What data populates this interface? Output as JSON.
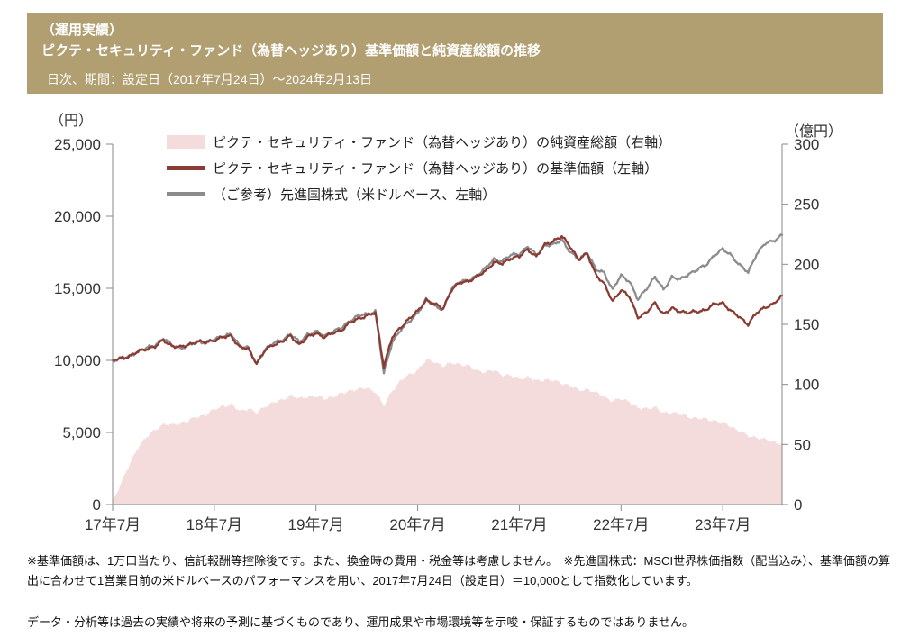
{
  "header": {
    "line1": "（運用実績）",
    "line2": "ピクテ・セキュリティ・ファンド（為替ヘッジあり）基準価額と純資産総額の推移",
    "line3": "日次、期間：設定日（2017年7月24日）～2024年2月13日"
  },
  "footnotes": {
    "note1": "※基準価額は、1万口当たり、信託報酬等控除後です。また、換金時の費用・税金等は考慮しません。　※先進国株式：MSCI世界株価指数（配当込み）、基準価額の算出に合わせて1営業日前の米ドルベースのパフォーマンスを用い、2017年7月24日（設定日）＝10,000として指数化しています。",
    "note2": "データ・分析等は過去の実績や将来の予測に基づくものであり、運用成果や市場環境等を示唆・保証するものではありません。"
  },
  "colors": {
    "header_bg": "#b19f72",
    "header_text": "#ffffff",
    "area_pink": "#f5dcdc",
    "nav_red": "#8a3b33",
    "index_gray": "#8c8c8c",
    "axis_text": "#333333",
    "axis_line": "#8a8a8a"
  },
  "chart_data": {
    "type": "line+area",
    "title": "ピクテ・セキュリティ・ファンド（為替ヘッジあり）基準価額と純資産総額の推移",
    "subtitle": "日次、期間：設定日（2017年7月24日）～2024年2月13日",
    "grid": false,
    "legend_position": "top-left-inside",
    "x_unit": "month",
    "x": [
      "2017-07",
      "2017-08",
      "2017-09",
      "2017-10",
      "2017-11",
      "2017-12",
      "2018-01",
      "2018-02",
      "2018-03",
      "2018-04",
      "2018-05",
      "2018-06",
      "2018-07",
      "2018-08",
      "2018-09",
      "2018-10",
      "2018-11",
      "2018-12",
      "2019-01",
      "2019-02",
      "2019-03",
      "2019-04",
      "2019-05",
      "2019-06",
      "2019-07",
      "2019-08",
      "2019-09",
      "2019-10",
      "2019-11",
      "2019-12",
      "2020-01",
      "2020-02",
      "2020-03",
      "2020-04",
      "2020-05",
      "2020-06",
      "2020-07",
      "2020-08",
      "2020-09",
      "2020-10",
      "2020-11",
      "2020-12",
      "2021-01",
      "2021-02",
      "2021-03",
      "2021-04",
      "2021-05",
      "2021-06",
      "2021-07",
      "2021-08",
      "2021-09",
      "2021-10",
      "2021-11",
      "2021-12",
      "2022-01",
      "2022-02",
      "2022-03",
      "2022-04",
      "2022-05",
      "2022-06",
      "2022-07",
      "2022-08",
      "2022-09",
      "2022-10",
      "2022-11",
      "2022-12",
      "2023-01",
      "2023-02",
      "2023-03",
      "2023-04",
      "2023-05",
      "2023-06",
      "2023-07",
      "2023-08",
      "2023-09",
      "2023-10",
      "2023-11",
      "2023-12",
      "2024-01",
      "2024-02"
    ],
    "x_tick_labels": [
      "17年7月",
      "18年7月",
      "19年7月",
      "20年7月",
      "21年7月",
      "22年7月",
      "23年7月"
    ],
    "x_tick_indices": [
      0,
      12,
      24,
      36,
      48,
      60,
      72
    ],
    "left_axis": {
      "label": "（円）",
      "min": 0,
      "max": 25000,
      "ticks": [
        0,
        5000,
        10000,
        15000,
        20000,
        25000
      ]
    },
    "right_axis": {
      "label": "（億円）",
      "min": 0,
      "max": 300,
      "ticks": [
        0,
        50,
        100,
        150,
        200,
        250,
        300
      ]
    },
    "series": [
      {
        "name": "ピクテ・セキュリティ・ファンド（為替ヘッジあり）の純資産総額（右軸）",
        "type": "area",
        "axis": "right",
        "color": "#f5dcdc",
        "values": [
          3,
          18,
          33,
          48,
          56,
          62,
          67,
          66,
          68,
          70,
          73,
          75,
          79,
          82,
          83,
          78,
          80,
          76,
          82,
          85,
          87,
          91,
          88,
          90,
          90,
          88,
          90,
          92,
          95,
          96,
          97,
          94,
          82,
          95,
          103,
          108,
          112,
          120,
          119,
          115,
          118,
          117,
          115,
          112,
          110,
          112,
          108,
          107,
          105,
          106,
          103,
          104,
          103,
          101,
          99,
          95,
          96,
          93,
          90,
          86,
          88,
          86,
          80,
          80,
          81,
          76,
          77,
          75,
          73,
          72,
          71,
          70,
          68,
          65,
          61,
          57,
          56,
          54,
          52,
          51
        ]
      },
      {
        "name": "ピクテ・セキュリティ・ファンド（為替ヘッジあり）の基準価額（左軸）",
        "type": "line",
        "axis": "left",
        "color": "#8a3b33",
        "values": [
          10000,
          10150,
          10300,
          10600,
          10800,
          10950,
          11400,
          11000,
          10900,
          11100,
          11300,
          11250,
          11400,
          11600,
          11700,
          10900,
          10800,
          9800,
          10700,
          11100,
          11300,
          11700,
          11100,
          11600,
          11900,
          11600,
          11900,
          12100,
          12600,
          12900,
          13100,
          13300,
          9600,
          11600,
          12300,
          12900,
          13400,
          14200,
          13900,
          13600,
          14900,
          15400,
          15500,
          15800,
          16200,
          16800,
          16700,
          17100,
          17200,
          17700,
          17200,
          18000,
          18300,
          18600,
          17900,
          17000,
          17400,
          16000,
          15300,
          14100,
          14900,
          14400,
          13000,
          13300,
          14000,
          13200,
          13600,
          13400,
          13300,
          13400,
          13500,
          13900,
          14000,
          13400,
          13000,
          12500,
          13300,
          13700,
          13900,
          14500
        ]
      },
      {
        "name": "（ご参考）先進国株式（米ドルベース、左軸）",
        "type": "line",
        "axis": "left",
        "color": "#8c8c8c",
        "values": [
          10000,
          10100,
          10250,
          10650,
          10850,
          11050,
          11550,
          11050,
          10850,
          11050,
          11300,
          11250,
          11450,
          11700,
          11800,
          11000,
          10900,
          9700,
          10800,
          11200,
          11400,
          11850,
          11250,
          11800,
          12000,
          11700,
          12000,
          12250,
          12750,
          13100,
          13200,
          13400,
          9100,
          11300,
          12100,
          12700,
          13300,
          14200,
          13800,
          13500,
          15000,
          15500,
          15500,
          15900,
          16400,
          17000,
          16900,
          17300,
          17400,
          17900,
          17300,
          18000,
          18000,
          18400,
          17500,
          17000,
          17500,
          16300,
          16100,
          14900,
          15900,
          15500,
          14200,
          15000,
          15800,
          14900,
          15800,
          15600,
          16000,
          16300,
          16600,
          17300,
          17700,
          17300,
          16600,
          16100,
          17400,
          18100,
          18300,
          18700
        ]
      }
    ]
  }
}
